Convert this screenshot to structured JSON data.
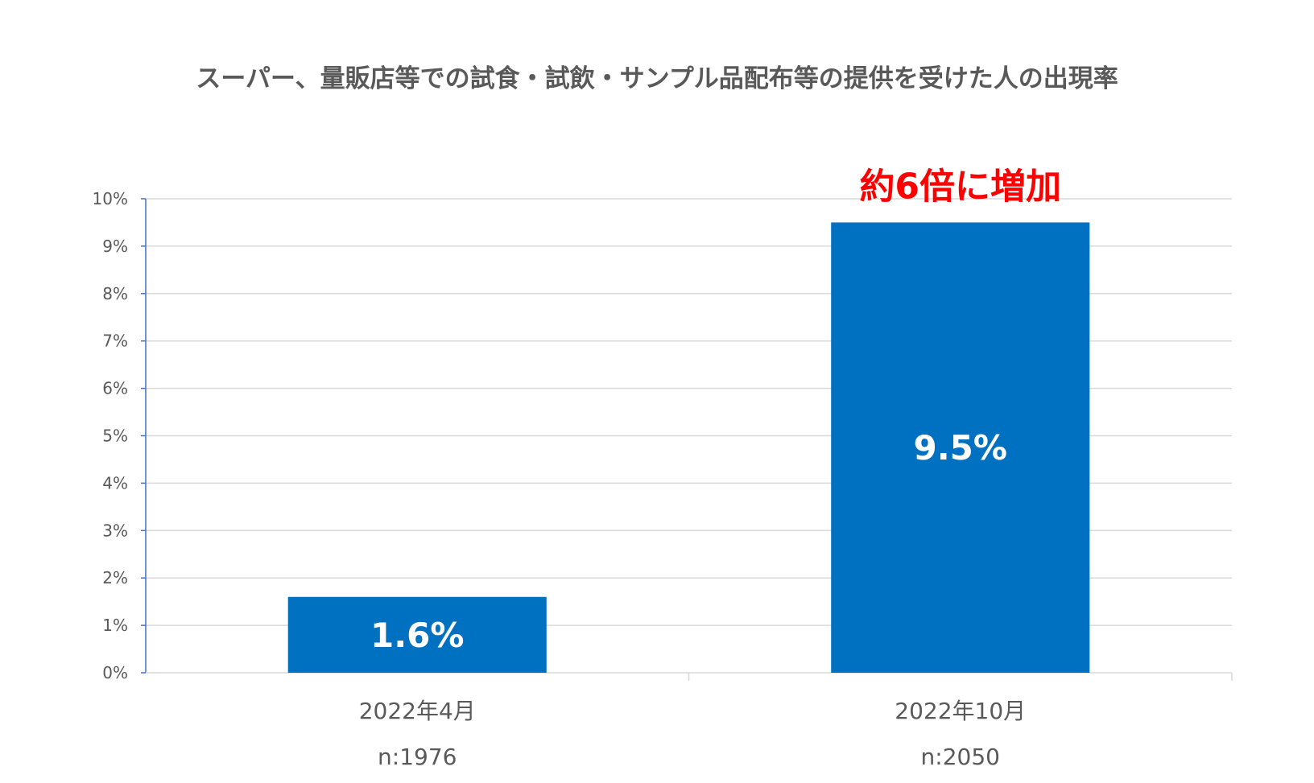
{
  "chart_data": {
    "type": "bar",
    "title": "スーパー、量販店等での試食・試飲・サンプル品配布等の提供を受けた人の出現率",
    "categories": [
      "2022年4月",
      "2022年10月"
    ],
    "sample_sizes": [
      "n:1976",
      "n:2050"
    ],
    "values": [
      1.6,
      9.5
    ],
    "data_labels": [
      "1.6%",
      "9.5%"
    ],
    "ylim": [
      0,
      10
    ],
    "y_ticks": [
      0,
      1,
      2,
      3,
      4,
      5,
      6,
      7,
      8,
      9,
      10
    ],
    "y_tick_labels": [
      "0%",
      "1%",
      "2%",
      "3%",
      "4%",
      "5%",
      "6%",
      "7%",
      "8%",
      "9%",
      "10%"
    ],
    "grid": true,
    "annotation": "約6倍に増加",
    "xlabel": "",
    "ylabel": ""
  },
  "colors": {
    "bar": "#0070C0",
    "grid": "#D9D9D9",
    "axis": "#4472C4",
    "annotation": "#FF0000",
    "text": "#595959"
  }
}
